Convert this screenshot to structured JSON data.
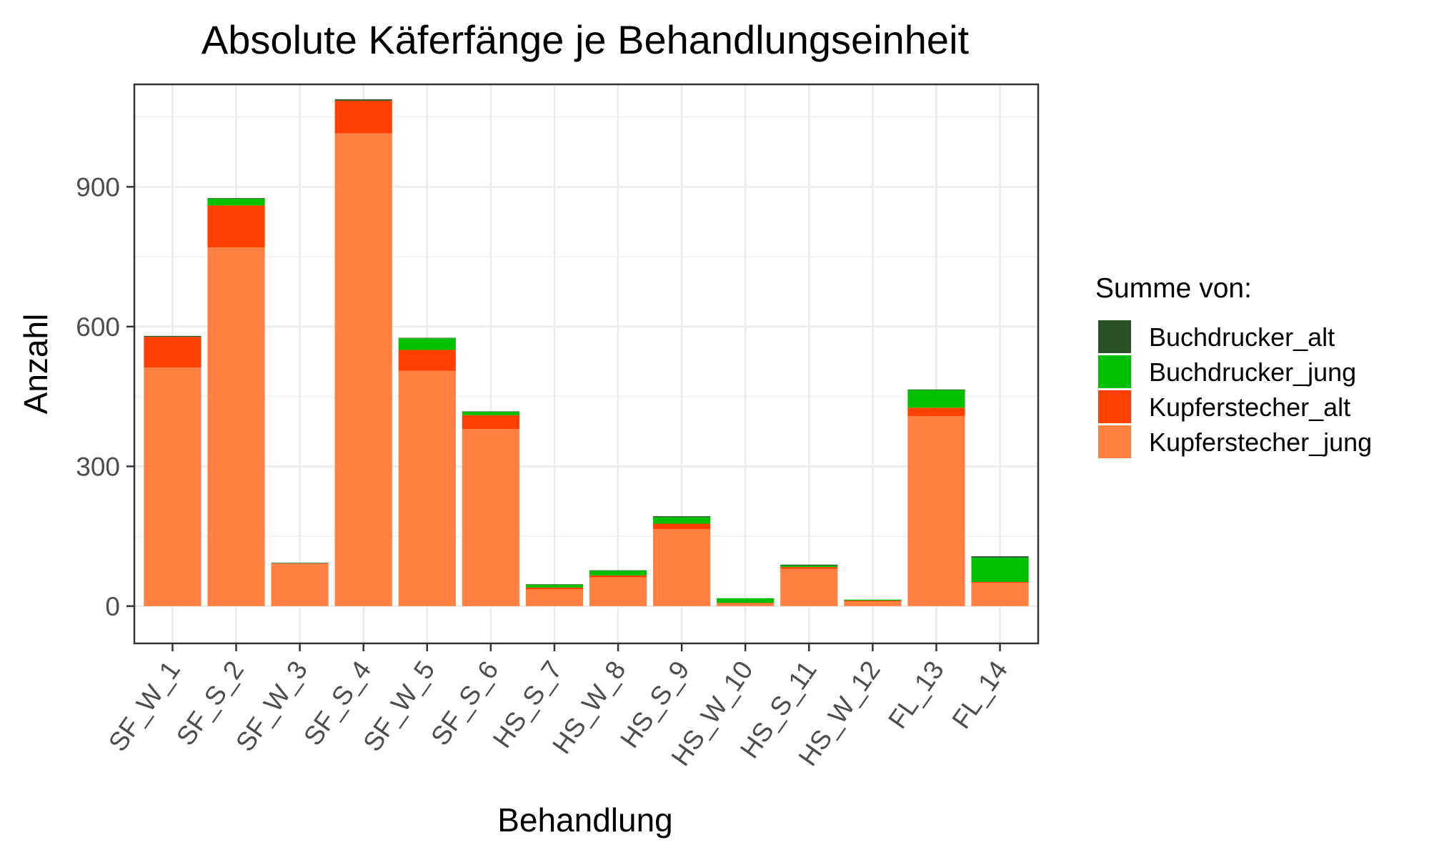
{
  "chart_data": {
    "type": "bar",
    "stacked": true,
    "title": "Absolute Käferfänge je Behandlungseinheit",
    "xlabel": "Behandlung",
    "ylabel": "Anzahl",
    "ylim": [
      -80,
      1120
    ],
    "yticks": [
      0,
      300,
      600,
      900
    ],
    "grid": true,
    "legend": {
      "title": "Summe von:",
      "position": "right"
    },
    "categories": [
      "SF_W_1",
      "SF_S_2",
      "SF_W_3",
      "SF_S_4",
      "SF_W_5",
      "SF_S_6",
      "HS_S_7",
      "HS_W_8",
      "HS_S_9",
      "HS_W_10",
      "HS_S_11",
      "HS_W_12",
      "FL_13",
      "FL_14"
    ],
    "series": [
      {
        "name": "Kupferstecher_jung",
        "color": "#FF8040",
        "values": [
          512,
          770,
          92,
          1015,
          505,
          380,
          36,
          62,
          165,
          6,
          80,
          10,
          408,
          50
        ]
      },
      {
        "name": "Kupferstecher_alt",
        "color": "#FF4000",
        "values": [
          66,
          90,
          0,
          70,
          45,
          30,
          4,
          4,
          12,
          1,
          4,
          2,
          18,
          2
        ]
      },
      {
        "name": "Buchdrucker_jung",
        "color": "#00C000",
        "values": [
          0,
          15,
          0,
          0,
          25,
          7,
          6,
          10,
          14,
          10,
          3,
          2,
          38,
          52
        ]
      },
      {
        "name": "Buchdrucker_alt",
        "color": "#2A5128",
        "values": [
          2,
          1,
          1,
          3,
          1,
          1,
          1,
          1,
          2,
          0,
          2,
          0,
          1,
          3
        ]
      }
    ]
  }
}
